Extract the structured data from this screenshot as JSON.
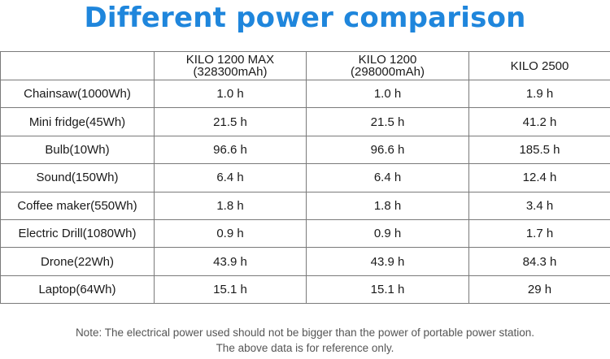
{
  "title": "Different power comparison",
  "table": {
    "headers": [
      {
        "line1": "",
        "line2": ""
      },
      {
        "line1": "KILO 1200 MAX",
        "line2": "(328300mAh)"
      },
      {
        "line1": "KILO 1200",
        "line2": "(298000mAh)"
      },
      {
        "line1": "KILO 2500",
        "line2": ""
      }
    ],
    "rows": [
      {
        "device": "Chainsaw(1000Wh)",
        "kilo1200max": "1.0 h",
        "kilo1200": "1.0 h",
        "kilo2500": "1.9 h"
      },
      {
        "device": "Mini fridge(45Wh)",
        "kilo1200max": "21.5 h",
        "kilo1200": "21.5 h",
        "kilo2500": "41.2 h"
      },
      {
        "device": "Bulb(10Wh)",
        "kilo1200max": "96.6 h",
        "kilo1200": "96.6 h",
        "kilo2500": "185.5 h"
      },
      {
        "device": "Sound(150Wh)",
        "kilo1200max": "6.4 h",
        "kilo1200": "6.4 h",
        "kilo2500": "12.4 h"
      },
      {
        "device": "Coffee maker(550Wh)",
        "kilo1200max": "1.8 h",
        "kilo1200": "1.8 h",
        "kilo2500": "3.4 h"
      },
      {
        "device": "Electric Drill(1080Wh)",
        "kilo1200max": "0.9 h",
        "kilo1200": "0.9 h",
        "kilo2500": "1.7 h"
      },
      {
        "device": "Drone(22Wh)",
        "kilo1200max": "43.9 h",
        "kilo1200": "43.9 h",
        "kilo2500": "84.3 h"
      },
      {
        "device": "Laptop(64Wh)",
        "kilo1200max": "15.1 h",
        "kilo1200": "15.1 h",
        "kilo2500": "29 h"
      }
    ]
  },
  "note": {
    "line1": "Note: The electrical power used should not be bigger than the power of portable power station.",
    "line2": "The above data is for reference only."
  },
  "colors": {
    "title": "#1f86dc",
    "border": "#7a7a7a",
    "note": "#555555"
  }
}
